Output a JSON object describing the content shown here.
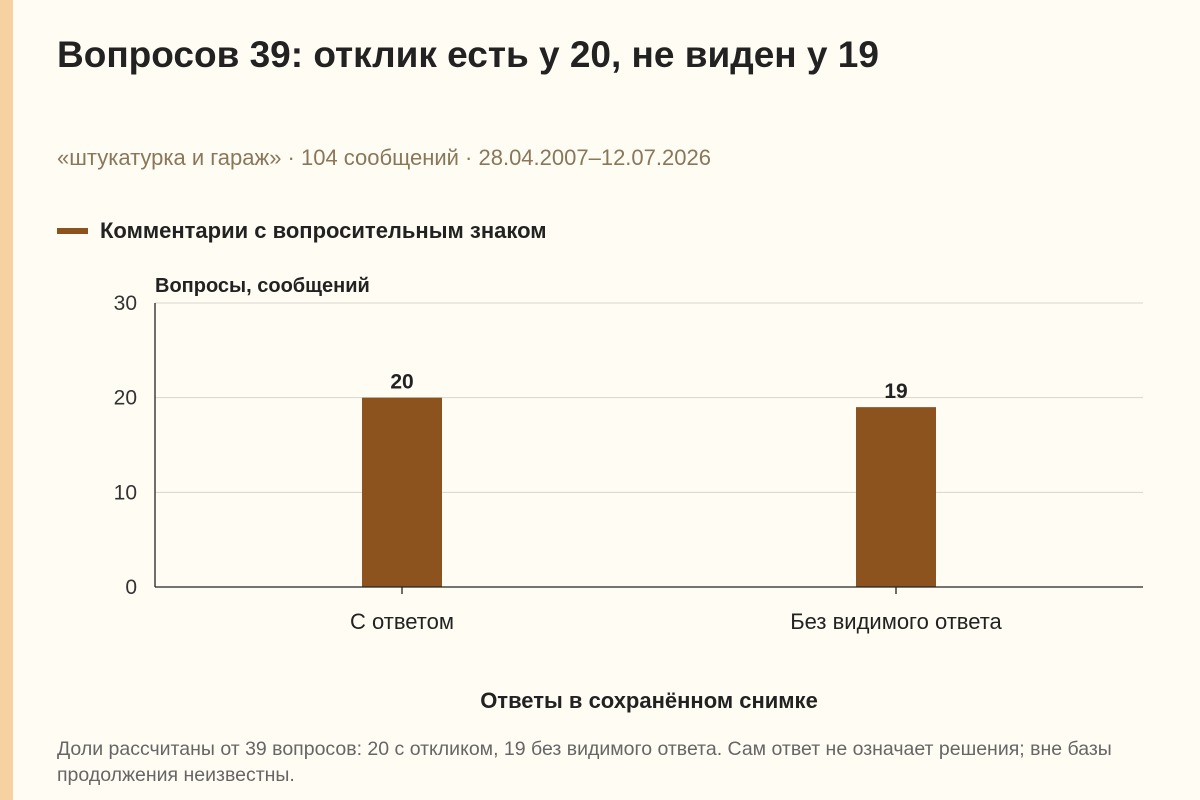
{
  "title": "Вопросов 39: отклик есть у 20, не виден у 19",
  "subtitle": "«штукатурка и гараж» · 104 сообщений · 28.04.2007–12.07.2026",
  "note": "Доли рассчитаны от 39 вопросов: 20 с откликом, 19 без видимого ответа. Сам ответ не означает решения; вне базы продолжения неизвестны.",
  "colors": {
    "background": "#fffcf3",
    "accent_strip": "#f6d2a2",
    "bar": "#8c531f",
    "subtitle": "#8a7759",
    "grid": "#d9d6cd",
    "axis": "#222222"
  },
  "chart_data": {
    "type": "bar",
    "categories": [
      "С ответом",
      "Без видимого ответа"
    ],
    "series": [
      {
        "name": "Комментарии с вопросительным знаком",
        "values": [
          20,
          19
        ]
      }
    ],
    "data_labels": [
      "20",
      "19"
    ],
    "xlabel": "Ответы в сохранённом снимке",
    "ylabel": "Вопросы, сообщений",
    "ylim": [
      0,
      30
    ],
    "yticks": [
      0,
      10,
      20,
      30
    ],
    "grid": true,
    "legend": "top-left"
  }
}
